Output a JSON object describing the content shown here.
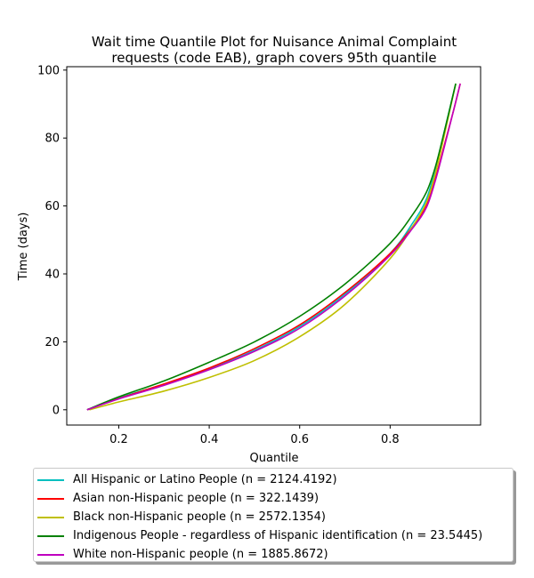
{
  "chart_data": {
    "type": "line",
    "title": "Wait time Quantile Plot for Nuisance Animal Complaint\nrequests (code EAB), graph covers 95th quantile",
    "xlabel": "Quantile",
    "ylabel": "Time (days)",
    "xlim": [
      0.085,
      1.0
    ],
    "ylim": [
      -4.5,
      101
    ],
    "xticks": [
      0.2,
      0.4,
      0.6,
      0.8
    ],
    "xtick_labels": [
      "0.2",
      "0.4",
      "0.6",
      "0.8"
    ],
    "yticks": [
      0,
      20,
      40,
      60,
      80,
      100
    ],
    "ytick_labels": [
      "0",
      "20",
      "40",
      "60",
      "80",
      "100"
    ],
    "grid": false,
    "legend_position": "below",
    "series": [
      {
        "name": "All Hispanic or Latino People (n = 2124.4192)",
        "color": "#00bfbf",
        "x": [
          0.13,
          0.2,
          0.3,
          0.4,
          0.5,
          0.6,
          0.7,
          0.8,
          0.85,
          0.88,
          0.9,
          0.92,
          0.945
        ],
        "y": [
          0,
          3.5,
          7.5,
          12,
          17.5,
          24.5,
          34,
          46,
          55,
          62,
          71,
          82,
          96
        ]
      },
      {
        "name": "Asian non-Hispanic people (n = 322.1439)",
        "color": "#ff0000",
        "x": [
          0.13,
          0.2,
          0.3,
          0.4,
          0.5,
          0.6,
          0.7,
          0.8,
          0.85,
          0.88,
          0.9,
          0.92,
          0.94,
          0.955
        ],
        "y": [
          0,
          3.3,
          7.6,
          12.3,
          18,
          25,
          34.5,
          46,
          54,
          60,
          68,
          78,
          88,
          96
        ]
      },
      {
        "name": "Black non-Hispanic people (n = 2572.1354)",
        "color": "#bfbf00",
        "x": [
          0.135,
          0.2,
          0.3,
          0.4,
          0.5,
          0.6,
          0.7,
          0.8,
          0.85,
          0.88,
          0.9,
          0.92,
          0.945
        ],
        "y": [
          0,
          2.3,
          5.5,
          9.5,
          14.5,
          21.5,
          31,
          44.5,
          54,
          61,
          69.5,
          81,
          96
        ]
      },
      {
        "name": "Indigenous People - regardless of Hispanic identification (n = 23.5445)",
        "color": "#008000",
        "x": [
          0.13,
          0.2,
          0.3,
          0.4,
          0.5,
          0.6,
          0.7,
          0.8,
          0.85,
          0.88,
          0.9,
          0.92,
          0.945
        ],
        "y": [
          0,
          3.8,
          8.5,
          14,
          20,
          27.5,
          37,
          49,
          57.5,
          64,
          71.5,
          82,
          96
        ]
      },
      {
        "name": "White non-Hispanic people (n = 1885.8672)",
        "color": "#bf00bf",
        "x": [
          0.13,
          0.2,
          0.3,
          0.4,
          0.5,
          0.6,
          0.7,
          0.8,
          0.85,
          0.88,
          0.9,
          0.92,
          0.94,
          0.955
        ],
        "y": [
          0,
          3.2,
          7.2,
          11.8,
          17.2,
          24,
          33.5,
          45.5,
          53.5,
          59.5,
          67.5,
          77.5,
          88,
          96
        ]
      }
    ]
  }
}
